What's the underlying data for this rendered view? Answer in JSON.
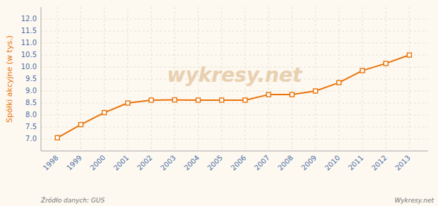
{
  "chart_data": {
    "type": "line",
    "x": [
      1998,
      1999,
      2000,
      2001,
      2002,
      2003,
      2004,
      2005,
      2006,
      2007,
      2008,
      2009,
      2010,
      2011,
      2012,
      2013
    ],
    "values": [
      7.05,
      7.6,
      8.1,
      8.5,
      8.62,
      8.63,
      8.62,
      8.62,
      8.62,
      8.85,
      8.85,
      9.0,
      9.35,
      9.85,
      10.15,
      10.5
    ],
    "color": "#e8730a",
    "marker": "square",
    "y_label": "Spółki akcyjne (w tys.)",
    "xlim": [
      1997.3,
      2013.8
    ],
    "xticks": [
      1998,
      1999,
      2000,
      2001,
      2002,
      2003,
      2004,
      2005,
      2006,
      2007,
      2008,
      2009,
      2010,
      2011,
      2012,
      2013
    ],
    "ylim": [
      6.5,
      12.5
    ],
    "yticks": [
      {
        "value": 7,
        "label": "7.0"
      },
      7.5,
      {
        "value": 8,
        "label": "8.0"
      },
      8.5,
      {
        "value": 9,
        "label": "9.0"
      },
      9.5,
      {
        "value": 10,
        "label": "10.0"
      },
      10.5,
      {
        "value": 11,
        "label": "11.0"
      },
      11.5,
      {
        "value": 12,
        "label": "12.0"
      }
    ],
    "grid": true,
    "annotations": [
      "wykresy.net",
      "Źródło danych:  GUS",
      "Wykresy.net"
    ]
  }
}
